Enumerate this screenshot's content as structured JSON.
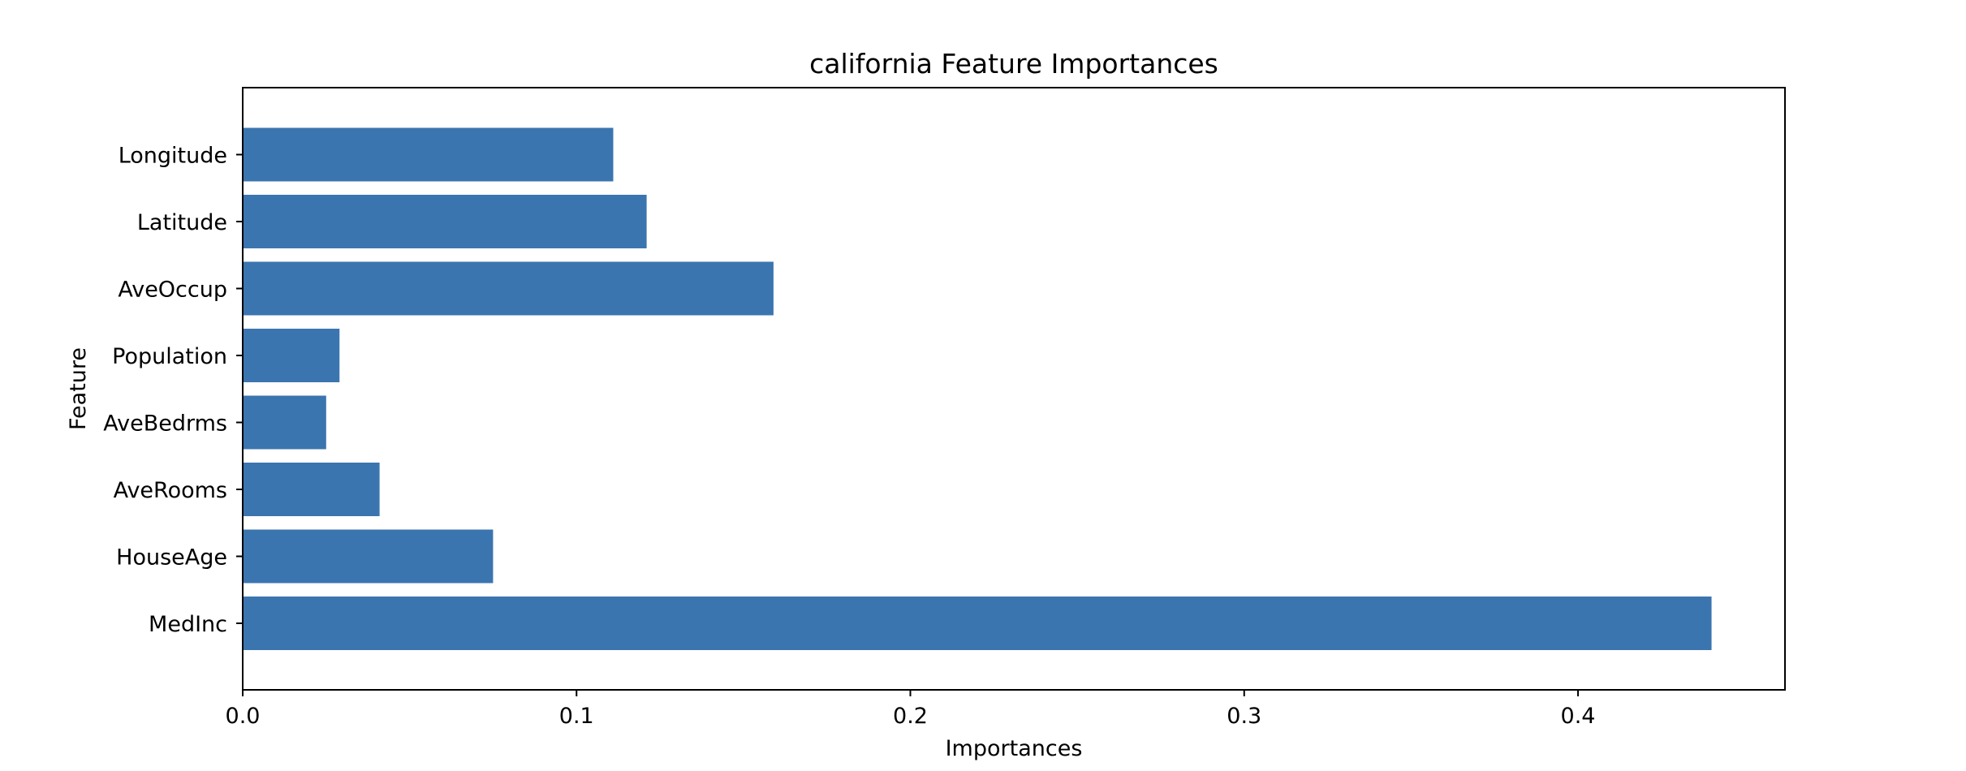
{
  "chart_data": {
    "type": "bar",
    "orientation": "horizontal",
    "title": "california Feature Importances",
    "xlabel": "Importances",
    "ylabel": "Feature",
    "categories": [
      "MedInc",
      "HouseAge",
      "AveRooms",
      "AveBedrms",
      "Population",
      "AveOccup",
      "Latitude",
      "Longitude"
    ],
    "values": [
      0.44,
      0.075,
      0.041,
      0.025,
      0.029,
      0.159,
      0.121,
      0.111
    ],
    "xlim": [
      0,
      0.462
    ],
    "xticks": [
      0.0,
      0.1,
      0.2,
      0.3,
      0.4
    ],
    "xtick_labels": [
      "0.0",
      "0.1",
      "0.2",
      "0.3",
      "0.4"
    ],
    "bar_color": "#3b75af",
    "grid": false,
    "legend": false
  }
}
